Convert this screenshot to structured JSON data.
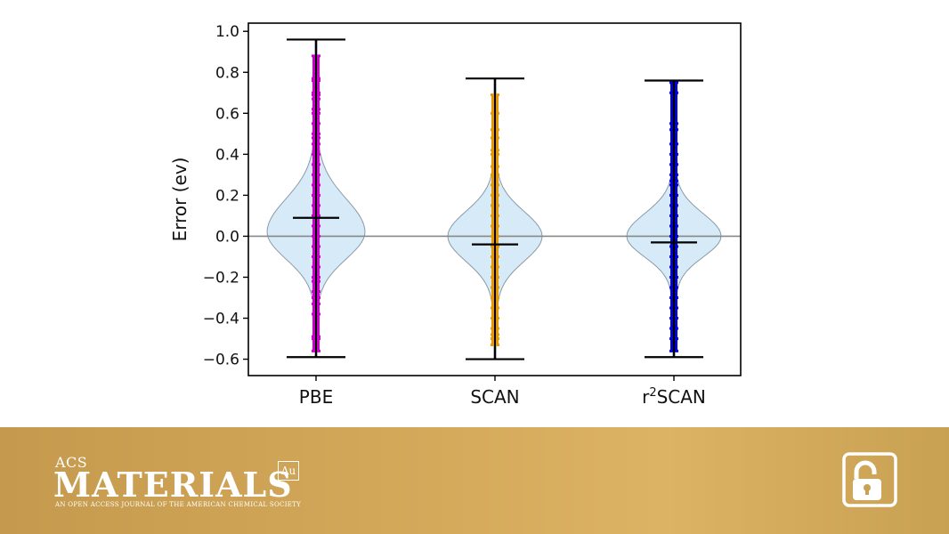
{
  "chart_data": {
    "type": "violin",
    "ylabel": "Error (ev)",
    "xlabel": "",
    "ylim": [
      -0.68,
      1.04
    ],
    "yticks": [
      1.0,
      0.8,
      0.6,
      0.4,
      0.2,
      0.0,
      -0.2,
      -0.4,
      -0.6
    ],
    "ytick_labels": [
      "1.0",
      "0.8",
      "0.6",
      "0.4",
      "0.2",
      "0.0",
      "−0.2",
      "−0.4",
      "−0.6"
    ],
    "reference_line": 0.0,
    "categories": [
      {
        "label": "PBE",
        "color": "#cc00cc",
        "max": 0.96,
        "min": -0.59,
        "mean": 0.09,
        "points": [
          0.88,
          0.77,
          0.76,
          0.7,
          0.69,
          0.67,
          0.62,
          0.6,
          0.55,
          0.5,
          0.48,
          0.45,
          0.4,
          0.35,
          0.3,
          0.25,
          0.2,
          0.15,
          0.1,
          0.05,
          0.0,
          -0.05,
          -0.1,
          -0.15,
          -0.2,
          -0.22,
          -0.27,
          -0.3,
          -0.33,
          -0.38,
          -0.49,
          -0.5,
          -0.56
        ]
      },
      {
        "label": "SCAN",
        "color": "#e69a00",
        "max": 0.77,
        "min": -0.6,
        "mean": -0.04,
        "points": [
          0.69,
          0.6,
          0.52,
          0.48,
          0.42,
          0.4,
          0.34,
          0.3,
          0.25,
          0.2,
          0.15,
          0.1,
          0.05,
          0.0,
          -0.05,
          -0.1,
          -0.15,
          -0.2,
          -0.25,
          -0.3,
          -0.35,
          -0.4,
          -0.45,
          -0.48,
          -0.5,
          -0.53
        ]
      },
      {
        "label": "r²SCAN",
        "label_base": "r",
        "label_sup": "2",
        "label_rest": "SCAN",
        "color": "#0000cc",
        "max": 0.76,
        "min": -0.59,
        "mean": -0.03,
        "points": [
          0.75,
          0.7,
          0.55,
          0.52,
          0.45,
          0.4,
          0.35,
          0.3,
          0.27,
          0.25,
          0.2,
          0.15,
          0.1,
          0.05,
          0.0,
          -0.05,
          -0.1,
          -0.15,
          -0.2,
          -0.25,
          -0.3,
          -0.35,
          -0.4,
          -0.45,
          -0.5,
          -0.56
        ]
      }
    ],
    "grid": false,
    "legend": "none"
  },
  "footer": {
    "acs": "ACS",
    "materials": "MATERIALS",
    "au": "Au",
    "tagline": "AN OPEN ACCESS JOURNAL OF THE AMERICAN CHEMICAL SOCIETY",
    "open_access_icon": "open-lock-icon"
  },
  "colors": {
    "violin_fill": "#d6ebf7",
    "violin_edge": "#8a9aa8",
    "footer_gold": "#d4a95a"
  }
}
